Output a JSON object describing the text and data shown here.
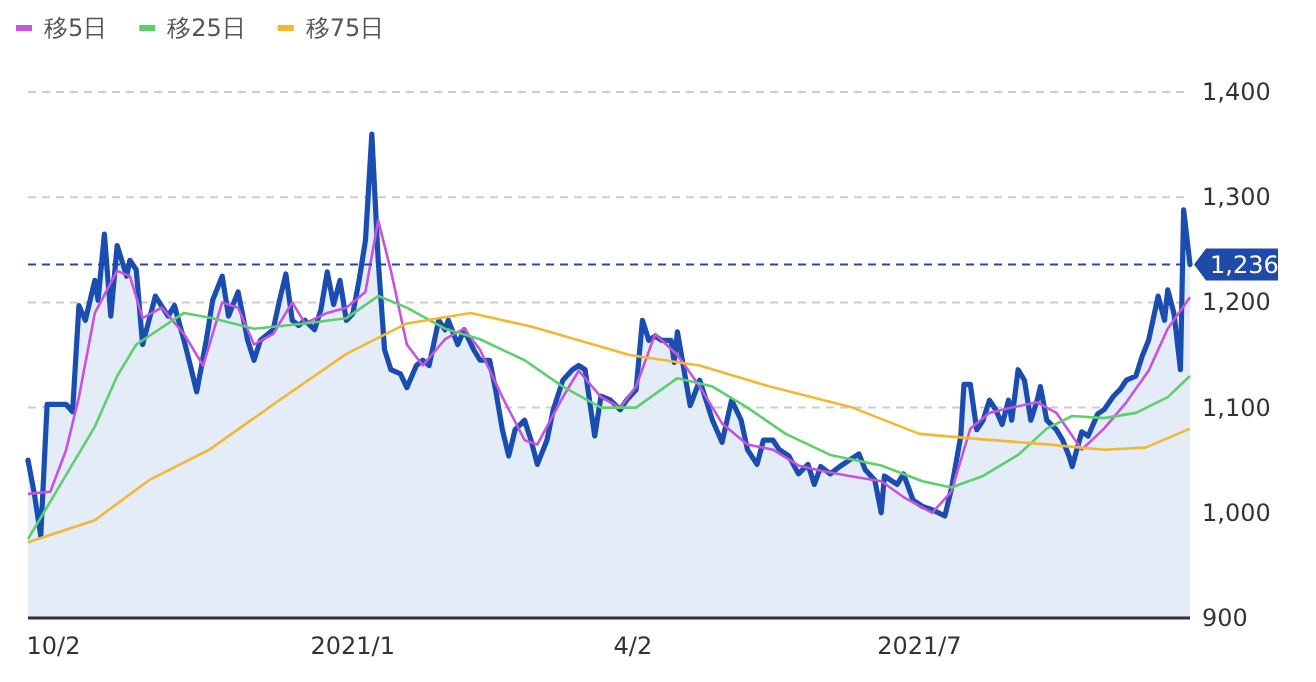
{
  "chart_data": {
    "type": "area",
    "xlim": [
      "2020-09-24",
      "2021-09-24"
    ],
    "xticks": [
      {
        "value": "2020-10-02",
        "label": "10/2"
      },
      {
        "value": "2021-01-04",
        "label": "2021/1"
      },
      {
        "value": "2021-04-02",
        "label": "4/2"
      },
      {
        "value": "2021-07-01",
        "label": "2021/7"
      }
    ],
    "ylim": [
      900,
      1400
    ],
    "yticks": [
      {
        "value": 900,
        "label": "900"
      },
      {
        "value": 1000,
        "label": "1,000"
      },
      {
        "value": 1100,
        "label": "1,100"
      },
      {
        "value": 1200,
        "label": "1,200"
      },
      {
        "value": 1300,
        "label": "1,300"
      },
      {
        "value": 1400,
        "label": "1,400"
      }
    ],
    "grid": "y",
    "legend": "top left",
    "ref_lines": [
      {
        "axis": "y",
        "value": 1236,
        "label": "1,236",
        "color": "#1f4aa8",
        "line_style": "dashed"
      }
    ],
    "series": [
      {
        "color": "#1a4db0",
        "x": [
          "2020-09-24",
          "2020-09-26",
          "2020-09-28",
          "2020-09-30",
          "2020-10-06",
          "2020-10-08",
          "2020-10-10",
          "2020-10-12",
          "2020-10-15",
          "2020-10-16",
          "2020-10-18",
          "2020-10-20",
          "2020-10-22",
          "2020-10-25",
          "2020-10-26",
          "2020-10-28",
          "2020-10-30",
          "2020-11-03",
          "2020-11-07",
          "2020-11-09",
          "2020-11-12",
          "2020-11-14",
          "2020-11-16",
          "2020-11-19",
          "2020-11-21",
          "2020-11-24",
          "2020-11-26",
          "2020-11-29",
          "2020-12-02",
          "2020-12-04",
          "2020-12-06",
          "2020-12-10",
          "2020-12-12",
          "2020-12-14",
          "2020-12-16",
          "2020-12-18",
          "2020-12-20",
          "2020-12-23",
          "2020-12-25",
          "2020-12-27",
          "2020-12-29",
          "2020-12-31",
          "2021-01-02",
          "2021-01-04",
          "2021-01-06",
          "2021-01-08",
          "2021-01-10",
          "2021-01-12",
          "2021-01-14",
          "2021-01-16",
          "2021-01-19",
          "2021-01-21",
          "2021-01-24",
          "2021-01-26",
          "2021-01-28",
          "2021-01-31",
          "2021-02-02",
          "2021-02-03",
          "2021-02-06",
          "2021-02-08",
          "2021-02-11",
          "2021-02-13",
          "2021-02-16",
          "2021-02-18",
          "2021-02-20",
          "2021-02-22",
          "2021-02-24",
          "2021-02-27",
          "2021-03-01",
          "2021-03-03",
          "2021-03-06",
          "2021-03-08",
          "2021-03-11",
          "2021-03-14",
          "2021-03-16",
          "2021-03-18",
          "2021-03-21",
          "2021-03-23",
          "2021-03-26",
          "2021-03-29",
          "2021-03-31",
          "2021-04-03",
          "2021-04-05",
          "2021-04-07",
          "2021-04-09",
          "2021-04-11",
          "2021-04-14",
          "2021-04-15",
          "2021-04-16",
          "2021-04-20",
          "2021-04-23",
          "2021-04-27",
          "2021-04-30",
          "2021-05-03",
          "2021-05-06",
          "2021-05-08",
          "2021-05-11",
          "2021-05-13",
          "2021-05-16",
          "2021-05-18",
          "2021-05-21",
          "2021-05-24",
          "2021-05-27",
          "2021-05-29",
          "2021-05-31",
          "2021-06-03",
          "2021-06-06",
          "2021-06-09",
          "2021-06-12",
          "2021-06-14",
          "2021-06-17",
          "2021-06-19",
          "2021-06-20",
          "2021-06-24",
          "2021-06-26",
          "2021-06-29",
          "2021-07-02",
          "2021-07-05",
          "2021-07-09",
          "2021-07-11",
          "2021-07-14",
          "2021-07-15",
          "2021-07-17",
          "2021-07-19",
          "2021-07-21",
          "2021-07-23",
          "2021-07-25",
          "2021-07-27",
          "2021-07-29",
          "2021-07-30",
          "2021-08-01",
          "2021-08-03",
          "2021-08-05",
          "2021-08-07",
          "2021-08-08",
          "2021-08-10",
          "2021-08-13",
          "2021-08-15",
          "2021-08-17",
          "2021-08-18",
          "2021-08-21",
          "2021-08-23",
          "2021-08-26",
          "2021-08-28",
          "2021-08-31",
          "2021-09-02",
          "2021-09-04",
          "2021-09-07",
          "2021-09-09",
          "2021-09-11",
          "2021-09-14",
          "2021-09-16",
          "2021-09-17",
          "2021-09-19",
          "2021-09-21",
          "2021-09-22",
          "2021-09-24"
        ],
        "values": [
          1050,
          1018,
          978,
          1103,
          1103,
          1096,
          1197,
          1183,
          1221,
          1202,
          1265,
          1187,
          1254,
          1225,
          1240,
          1231,
          1160,
          1206,
          1187,
          1197,
          1164,
          1140,
          1115,
          1164,
          1202,
          1225,
          1187,
          1210,
          1164,
          1145,
          1164,
          1174,
          1202,
          1227,
          1183,
          1178,
          1183,
          1174,
          1193,
          1229,
          1198,
          1221,
          1183,
          1189,
          1221,
          1259,
          1360,
          1240,
          1155,
          1136,
          1132,
          1119,
          1140,
          1145,
          1140,
          1183,
          1174,
          1183,
          1160,
          1174,
          1155,
          1145,
          1145,
          1115,
          1079,
          1054,
          1079,
          1088,
          1069,
          1046,
          1069,
          1098,
          1126,
          1136,
          1140,
          1136,
          1073,
          1111,
          1107,
          1098,
          1107,
          1117,
          1183,
          1164,
          1168,
          1164,
          1164,
          1143,
          1172,
          1102,
          1126,
          1088,
          1067,
          1107,
          1088,
          1060,
          1046,
          1069,
          1069,
          1060,
          1054,
          1037,
          1046,
          1027,
          1044,
          1037,
          1044,
          1050,
          1056,
          1041,
          1031,
          1000,
          1035,
          1027,
          1037,
          1012,
          1006,
          1003,
          997,
          1022,
          1073,
          1122,
          1122,
          1079,
          1088,
          1107,
          1098,
          1084,
          1107,
          1088,
          1136,
          1126,
          1088,
          1107,
          1120,
          1088,
          1079,
          1069,
          1054,
          1044,
          1077,
          1073,
          1094,
          1098,
          1111,
          1117,
          1126,
          1130,
          1149,
          1164,
          1206,
          1183,
          1212,
          1189,
          1136,
          1288,
          1236
        ]
      },
      {
        "type": "line",
        "name": "移5日",
        "color": "#c653e0",
        "x": [
          "2020-09-24",
          "2020-10-01",
          "2020-10-06",
          "2020-10-10",
          "2020-10-15",
          "2020-10-22",
          "2020-10-26",
          "2020-10-30",
          "2020-11-05",
          "2020-11-12",
          "2020-11-18",
          "2020-11-24",
          "2020-11-29",
          "2020-12-04",
          "2020-12-10",
          "2020-12-16",
          "2020-12-20",
          "2020-12-27",
          "2021-01-02",
          "2021-01-08",
          "2021-01-12",
          "2021-01-16",
          "2021-01-21",
          "2021-01-26",
          "2021-02-02",
          "2021-02-08",
          "2021-02-13",
          "2021-02-20",
          "2021-02-27",
          "2021-03-03",
          "2021-03-11",
          "2021-03-16",
          "2021-03-23",
          "2021-03-29",
          "2021-04-03",
          "2021-04-09",
          "2021-04-16",
          "2021-04-23",
          "2021-04-30",
          "2021-05-08",
          "2021-05-16",
          "2021-05-24",
          "2021-05-31",
          "2021-06-09",
          "2021-06-19",
          "2021-06-26",
          "2021-07-05",
          "2021-07-11",
          "2021-07-17",
          "2021-07-23",
          "2021-07-30",
          "2021-08-07",
          "2021-08-13",
          "2021-08-21",
          "2021-08-28",
          "2021-09-04",
          "2021-09-11",
          "2021-09-17",
          "2021-09-24"
        ],
        "values": [
          1018,
          1020,
          1060,
          1110,
          1190,
          1230,
          1225,
          1185,
          1195,
          1170,
          1140,
          1200,
          1195,
          1160,
          1170,
          1200,
          1180,
          1190,
          1195,
          1210,
          1278,
          1230,
          1160,
          1140,
          1165,
          1175,
          1155,
          1110,
          1069,
          1065,
          1110,
          1135,
          1110,
          1100,
          1120,
          1170,
          1150,
          1120,
          1085,
          1065,
          1060,
          1045,
          1040,
          1035,
          1030,
          1015,
          1000,
          1020,
          1080,
          1095,
          1100,
          1105,
          1095,
          1060,
          1080,
          1105,
          1135,
          1175,
          1205
        ]
      },
      {
        "type": "line",
        "name": "移25日",
        "color": "#5ccf6e",
        "x": [
          "2020-09-24",
          "2020-10-15",
          "2020-10-22",
          "2020-10-28",
          "2020-11-12",
          "2020-11-21",
          "2020-12-04",
          "2020-12-20",
          "2021-01-02",
          "2021-01-12",
          "2021-01-21",
          "2021-02-02",
          "2021-02-13",
          "2021-02-27",
          "2021-03-11",
          "2021-03-23",
          "2021-04-03",
          "2021-04-16",
          "2021-04-27",
          "2021-05-08",
          "2021-05-20",
          "2021-06-03",
          "2021-06-19",
          "2021-07-02",
          "2021-07-11",
          "2021-07-21",
          "2021-08-01",
          "2021-08-10",
          "2021-08-18",
          "2021-08-28",
          "2021-09-07",
          "2021-09-17",
          "2021-09-24"
        ],
        "values": [
          975,
          1082,
          1130,
          1160,
          1190,
          1185,
          1175,
          1180,
          1185,
          1206,
          1195,
          1175,
          1165,
          1145,
          1120,
          1100,
          1100,
          1128,
          1120,
          1100,
          1075,
          1055,
          1045,
          1030,
          1024,
          1035,
          1055,
          1080,
          1092,
          1090,
          1095,
          1110,
          1130
        ]
      },
      {
        "type": "line",
        "name": "移75日",
        "color": "#f2b833",
        "x": [
          "2020-09-24",
          "2020-10-15",
          "2020-11-01",
          "2020-11-20",
          "2020-12-10",
          "2021-01-02",
          "2021-01-21",
          "2021-02-10",
          "2021-03-01",
          "2021-04-01",
          "2021-04-23",
          "2021-05-15",
          "2021-06-10",
          "2021-07-01",
          "2021-07-20",
          "2021-08-10",
          "2021-08-28",
          "2021-09-10",
          "2021-09-24"
        ],
        "values": [
          972,
          993,
          1031,
          1060,
          1103,
          1151,
          1180,
          1190,
          1177,
          1150,
          1140,
          1120,
          1100,
          1075,
          1070,
          1065,
          1060,
          1062,
          1080
        ]
      }
    ]
  }
}
